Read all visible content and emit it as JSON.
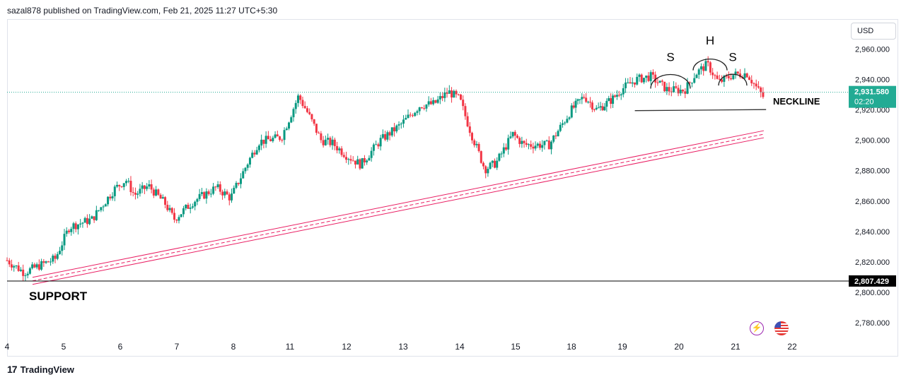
{
  "header": {
    "publish_line": "sazal878 published on TradingView.com, Feb 21, 2025 11:27 UTC+5:30"
  },
  "currency": "USD",
  "footer": {
    "brand": "TradingView",
    "logo": "tradingview-logo-icon"
  },
  "icons": {
    "lightning": "lightning-icon",
    "flag": "us-flag-icon"
  },
  "colors": {
    "up": "#089981",
    "down": "#f23645",
    "channel": "#e91e63",
    "price_tag": "#22ab94",
    "line": "#000000"
  },
  "chart_data": {
    "type": "candlestick",
    "y_axis": {
      "ticks": [
        2780,
        2800,
        2820,
        2840,
        2860,
        2880,
        2900,
        2920,
        2940,
        2960
      ],
      "tick_labels": [
        "2,780.000",
        "2,800.000",
        "2,820.000",
        "2,840.000",
        "2,860.000",
        "2,880.000",
        "2,900.000",
        "2,920.000",
        "2,940.000",
        "2,960.000"
      ],
      "range": [
        2770,
        2972
      ]
    },
    "x_axis": {
      "labels": [
        "4",
        "5",
        "6",
        "7",
        "8",
        "11",
        "12",
        "13",
        "14",
        "15",
        "18",
        "19",
        "20",
        "21",
        "22"
      ],
      "range": [
        4,
        22
      ]
    },
    "current_price": {
      "label": "2,931.580",
      "countdown": "02:20",
      "value": 2931.58
    },
    "support_price": {
      "label": "2,807.429",
      "value": 2807.429
    },
    "annotations": {
      "support": "SUPPORT",
      "neckline": "NECKLINE",
      "left_shoulder": "S",
      "head": "H",
      "right_shoulder": "S"
    },
    "waypoints": [
      [
        4.0,
        2821
      ],
      [
        4.3,
        2813
      ],
      [
        4.6,
        2818
      ],
      [
        4.85,
        2822
      ],
      [
        5.1,
        2843
      ],
      [
        5.5,
        2848
      ],
      [
        5.9,
        2868
      ],
      [
        6.1,
        2874
      ],
      [
        6.25,
        2864
      ],
      [
        6.5,
        2870
      ],
      [
        6.8,
        2858
      ],
      [
        6.95,
        2848
      ],
      [
        7.3,
        2860
      ],
      [
        7.7,
        2869
      ],
      [
        7.95,
        2862
      ],
      [
        8.25,
        2885
      ],
      [
        8.45,
        2899
      ],
      [
        8.85,
        2902
      ],
      [
        9.15,
        2929
      ],
      [
        9.3,
        2919
      ],
      [
        9.55,
        2900
      ],
      [
        9.75,
        2898
      ],
      [
        10.0,
        2890
      ],
      [
        10.25,
        2884
      ],
      [
        10.6,
        2900
      ],
      [
        10.95,
        2910
      ],
      [
        11.3,
        2923
      ],
      [
        11.55,
        2924
      ],
      [
        11.8,
        2932
      ],
      [
        12.0,
        2927
      ],
      [
        12.2,
        2905
      ],
      [
        12.45,
        2881
      ],
      [
        12.65,
        2885
      ],
      [
        12.95,
        2904
      ],
      [
        13.15,
        2897
      ],
      [
        13.6,
        2897
      ],
      [
        14.0,
        2920
      ],
      [
        14.25,
        2929
      ],
      [
        14.5,
        2920
      ],
      [
        14.8,
        2927
      ],
      [
        15.0,
        2934
      ],
      [
        15.25,
        2940
      ],
      [
        15.5,
        2942
      ],
      [
        15.8,
        2933
      ],
      [
        16.1,
        2933
      ],
      [
        16.3,
        2944
      ],
      [
        16.5,
        2950
      ],
      [
        16.7,
        2938
      ],
      [
        16.95,
        2943
      ],
      [
        17.2,
        2944
      ],
      [
        17.4,
        2933
      ],
      [
        17.5,
        2928
      ]
    ],
    "support_line": {
      "x": [
        4.45,
        17.5
      ],
      "y": [
        2807.5,
        2904
      ]
    },
    "neckline": {
      "x": [
        15.22,
        17.54
      ],
      "y": [
        2919.5,
        2920.2
      ]
    }
  }
}
